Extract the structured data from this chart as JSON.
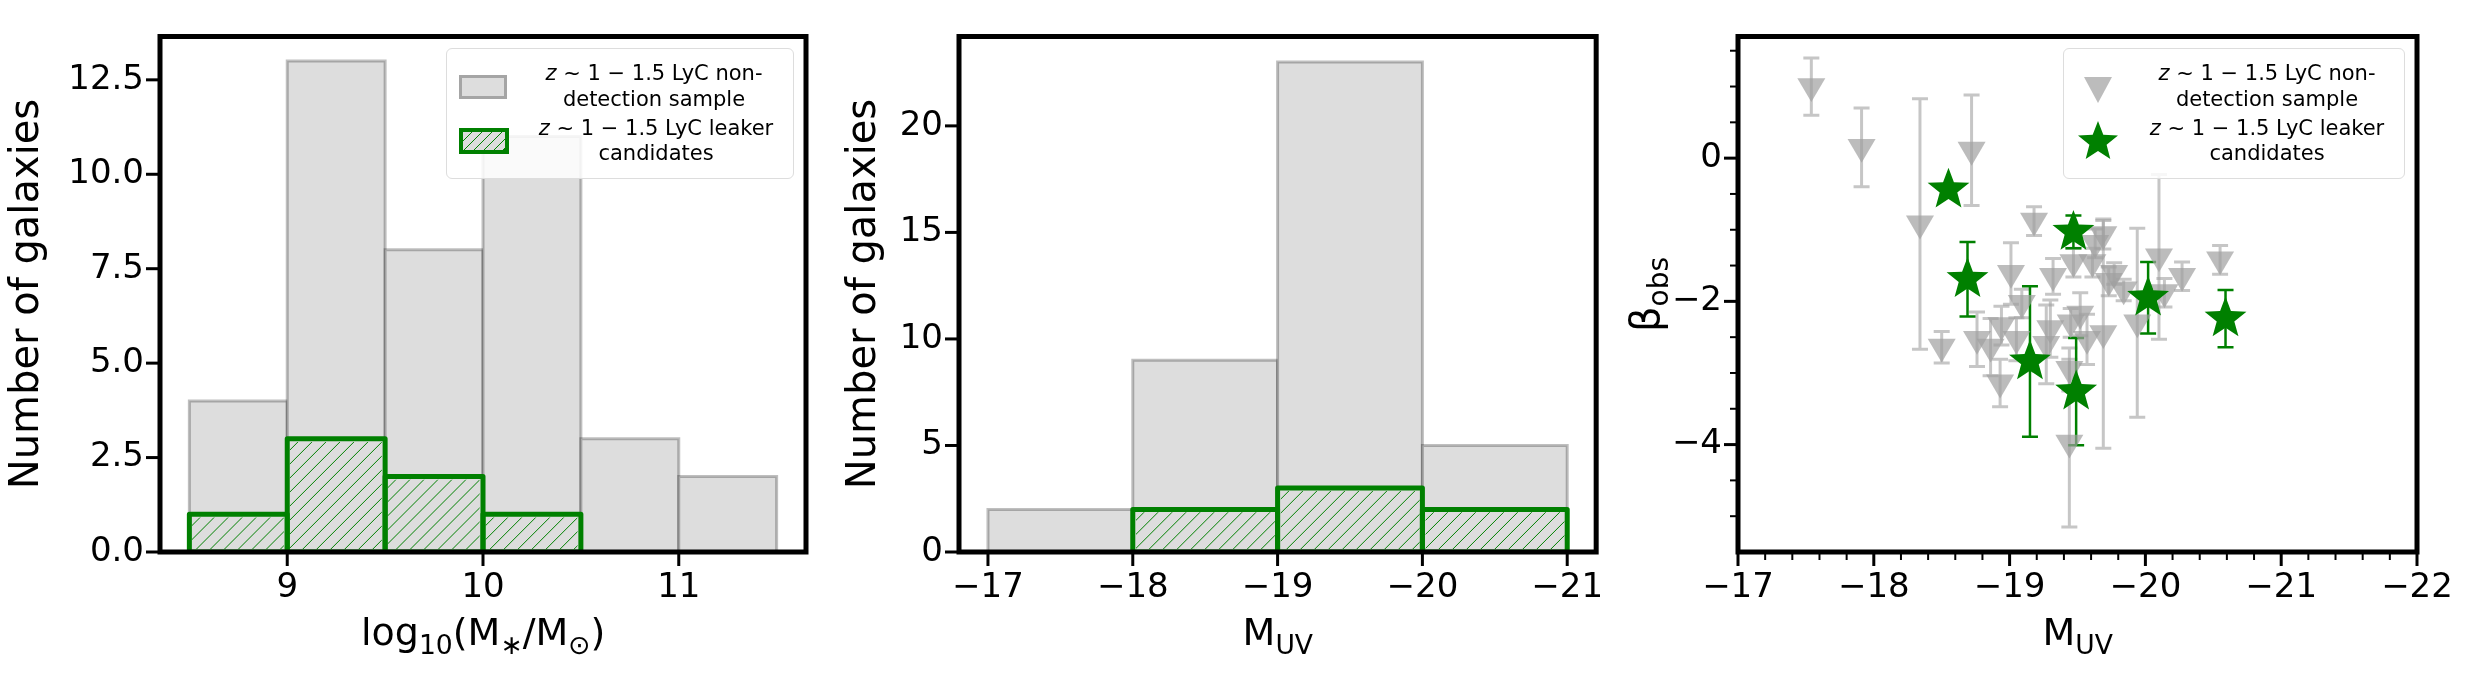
{
  "chart_data": [
    {
      "type": "histogram",
      "ylabel": "Number of galaxies",
      "xlabel": "log$_{10}$(M$_{∗}$/M$_{⊙}$)",
      "bins": [
        8.5,
        9,
        9.5,
        10,
        10.5,
        11,
        11.5
      ],
      "series": [
        {
          "name": "z ~ 1 − 1.5 LyC non-detection sample",
          "color": "#dddddd",
          "values": [
            4,
            13,
            8,
            11,
            3,
            2
          ]
        },
        {
          "name": "z ~ 1 − 1.5 LyC leaker candidates",
          "color": "#008000",
          "values": [
            1,
            3,
            2,
            1,
            null,
            null
          ]
        }
      ],
      "xlim": [
        8.35,
        11.65
      ],
      "xticks": [
        9,
        10,
        11
      ],
      "ylim": [
        0,
        13.65
      ],
      "yticks": [
        {
          "value": 0,
          "label": "0.0"
        },
        {
          "value": 2.5,
          "label": "2.5"
        },
        {
          "value": 5,
          "label": "5.0"
        },
        {
          "value": 7.5,
          "label": "7.5"
        },
        {
          "value": 10,
          "label": "10.0"
        },
        {
          "value": 12.5,
          "label": "12.5"
        }
      ],
      "legend": "top right",
      "grid": false
    },
    {
      "type": "histogram",
      "ylabel": "Number of galaxies",
      "xlabel": "M$_{UV}$",
      "bins": [
        -17,
        -18,
        -19,
        -20,
        -21
      ],
      "series": [
        {
          "color": "#dddddd",
          "values": [
            2,
            9,
            23,
            5
          ]
        },
        {
          "color": "#008000",
          "values": [
            null,
            2,
            3,
            2
          ]
        }
      ],
      "xlim": [
        -16.8,
        -21.2
      ],
      "xticks": [
        -17,
        -18,
        -19,
        -20,
        -21
      ],
      "ylim": [
        0,
        24.2
      ],
      "yticks": [
        0,
        5,
        10,
        15,
        20
      ],
      "grid": false
    },
    {
      "type": "scatter",
      "ylabel": "β$_{obs}$",
      "xlabel": "M$_{UV}$",
      "series": [
        {
          "name": "z ~ 1 − 1.5 LyC non-detection sample",
          "color": "#a0a0a0",
          "marker": "triangle",
          "x": [
            -17.54,
            -17.91,
            -18.34,
            -18.5,
            -18.72,
            -18.76,
            -18.86,
            -18.93,
            -18.94,
            -19.01,
            -19.05,
            -19.09,
            -19.18,
            -19.27,
            -19.32,
            -19.3,
            -19.45,
            -19.47,
            -19.44,
            -19.44,
            -19.52,
            -19.57,
            -19.61,
            -19.63,
            -19.69,
            -19.69,
            -19.73,
            -19.77,
            -19.84,
            -19.94,
            -20.1,
            -20.14,
            -20.27,
            -20.55
          ],
          "values": [
            1.0,
            0.15,
            -0.92,
            -2.64,
            0.11,
            -2.53,
            -2.64,
            -3.14,
            -2.34,
            -1.61,
            -2.53,
            -2.03,
            -0.88,
            -2.6,
            -1.65,
            -2.38,
            -2.3,
            -1.46,
            -2.95,
            -3.98,
            -2.18,
            -2.53,
            -1.46,
            -1.19,
            -1.07,
            -2.45,
            -1.72,
            -1.61,
            -1.84,
            -2.3,
            -1.38,
            -1.88,
            -1.65,
            -1.42
          ],
          "errors": [
            0.4,
            0.55,
            1.75,
            0.22,
            0.77,
            0.38,
            0.4,
            0.33,
            0.27,
            0.43,
            0.3,
            0.2,
            0.2,
            0.55,
            0.25,
            0.4,
            0.2,
            0.2,
            0.3,
            1.17,
            0.3,
            0.35,
            0.2,
            0.2,
            0.2,
            1.6,
            0.2,
            0.15,
            0.15,
            1.32,
            1.15,
            0.2,
            0.2,
            0.2
          ]
        },
        {
          "name": "z ~ 1 − 1.5 LyC leaker candidates",
          "color": "#008000",
          "marker": "star",
          "x": [
            -18.55,
            -18.69,
            -19.15,
            -19.47,
            -19.49,
            -20.02,
            -20.59
          ],
          "values": [
            -0.44,
            -1.69,
            -2.84,
            -1.03,
            -3.26,
            -1.95,
            -2.24
          ],
          "errors": [
            null,
            0.52,
            1.05,
            0.23,
            0.75,
            0.5,
            0.4
          ]
        }
      ],
      "xlim": [
        -17,
        -22
      ],
      "xticks": [
        -17,
        {
          "value": -17.2,
          "label": null
        },
        {
          "value": -17.4,
          "label": null
        },
        {
          "value": -17.6,
          "label": null
        },
        {
          "value": -17.8,
          "label": null
        },
        -18,
        {
          "value": -18.2,
          "label": null
        },
        {
          "value": -18.4,
          "label": null
        },
        {
          "value": -18.6,
          "label": null
        },
        {
          "value": -18.8,
          "label": null
        },
        -19,
        {
          "value": -19.2,
          "label": null
        },
        {
          "value": -19.4,
          "label": null
        },
        {
          "value": -19.6,
          "label": null
        },
        {
          "value": -19.8,
          "label": null
        },
        -20,
        {
          "value": -20.2,
          "label": null
        },
        {
          "value": -20.4,
          "label": null
        },
        {
          "value": -20.6,
          "label": null
        },
        {
          "value": -20.8,
          "label": null
        },
        -21,
        {
          "value": -21.2,
          "label": null
        },
        {
          "value": -21.4,
          "label": null
        },
        {
          "value": -21.6,
          "label": null
        },
        {
          "value": -21.8,
          "label": null
        },
        -22
      ],
      "ylim": [
        -5.5,
        1.7
      ],
      "yticks": [
        {
          "value": -5,
          "label": null
        },
        {
          "value": -4.5,
          "label": null
        },
        -4,
        {
          "value": -3.5,
          "label": null
        },
        {
          "value": -3,
          "label": null
        },
        {
          "value": -2.5,
          "label": null
        },
        -2,
        {
          "value": -1.5,
          "label": null
        },
        {
          "value": -1,
          "label": null
        },
        {
          "value": -0.5,
          "label": null
        },
        0,
        {
          "value": 0.5,
          "label": null
        },
        {
          "value": 1,
          "label": null
        },
        {
          "value": 1.5,
          "label": null
        }
      ],
      "legend": "top right",
      "grid": false
    }
  ]
}
